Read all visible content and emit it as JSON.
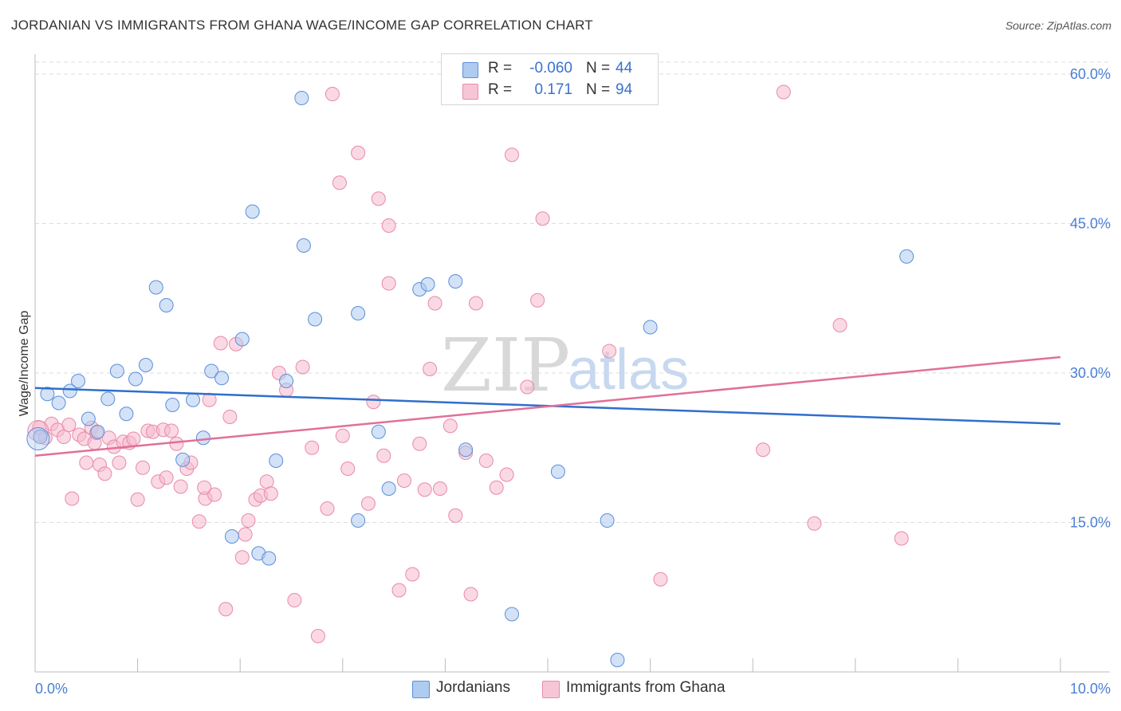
{
  "title": "JORDANIAN VS IMMIGRANTS FROM GHANA WAGE/INCOME GAP CORRELATION CHART",
  "source": "Source: ZipAtlas.com",
  "watermark": {
    "zip": "ZIP",
    "atlas": "atlas"
  },
  "legend": {
    "rows": [
      {
        "r_label": "R =",
        "r_value": "-0.060",
        "n_label": "N =",
        "n_value": "44"
      },
      {
        "r_label": "R =",
        "r_value": "0.171",
        "n_label": "N =",
        "n_value": "94"
      }
    ]
  },
  "bottom_legend": [
    "Jordanians",
    "Immigrants from Ghana"
  ],
  "colors": {
    "blue_fill": "#aecbf0",
    "blue_stroke": "#5b8fd9",
    "blue_line": "#2f6fcc",
    "pink_fill": "#f6b9cd",
    "pink_stroke": "#e88aa8",
    "pink_line": "#e0709a",
    "tick_label": "#4a7fd4",
    "grid": "#dddddd"
  },
  "chart_data": {
    "type": "scatter",
    "title": "JORDANIAN VS IMMIGRANTS FROM GHANA WAGE/INCOME GAP CORRELATION CHART",
    "xlabel": "",
    "ylabel": "Wage/Income Gap",
    "xlim": [
      0,
      10
    ],
    "ylim": [
      0,
      62
    ],
    "x_tick_labels": [
      {
        "value": 0,
        "label": "0.0%"
      },
      {
        "value": 10,
        "label": "10.0%"
      }
    ],
    "y_tick_labels": [
      {
        "value": 15,
        "label": "15.0%"
      },
      {
        "value": 30,
        "label": "30.0%"
      },
      {
        "value": 45,
        "label": "45.0%"
      },
      {
        "value": 60,
        "label": "60.0%"
      }
    ],
    "grid": true,
    "series": [
      {
        "name": "Jordanians",
        "color": "blue",
        "trend": {
          "x": [
            0,
            10
          ],
          "y": [
            28.5,
            24.9
          ]
        },
        "points": [
          [
            0.05,
            23.6
          ],
          [
            0.12,
            27.9
          ],
          [
            0.23,
            27.0
          ],
          [
            0.34,
            28.2
          ],
          [
            0.42,
            29.2
          ],
          [
            0.52,
            25.4
          ],
          [
            0.61,
            24.1
          ],
          [
            0.71,
            27.4
          ],
          [
            0.8,
            30.2
          ],
          [
            0.89,
            25.9
          ],
          [
            0.98,
            29.4
          ],
          [
            1.08,
            30.8
          ],
          [
            1.18,
            38.6
          ],
          [
            1.28,
            36.8
          ],
          [
            1.34,
            26.8
          ],
          [
            1.44,
            21.3
          ],
          [
            1.54,
            27.3
          ],
          [
            1.64,
            23.5
          ],
          [
            1.72,
            30.2
          ],
          [
            1.82,
            29.5
          ],
          [
            1.92,
            13.6
          ],
          [
            2.02,
            33.4
          ],
          [
            2.12,
            46.2
          ],
          [
            2.18,
            11.9
          ],
          [
            2.28,
            11.4
          ],
          [
            2.35,
            21.2
          ],
          [
            2.45,
            29.2
          ],
          [
            2.6,
            57.6
          ],
          [
            2.62,
            42.8
          ],
          [
            2.73,
            35.4
          ],
          [
            3.15,
            36.0
          ],
          [
            3.15,
            15.2
          ],
          [
            3.35,
            24.1
          ],
          [
            3.45,
            18.4
          ],
          [
            3.75,
            38.4
          ],
          [
            3.83,
            38.9
          ],
          [
            4.1,
            39.2
          ],
          [
            4.2,
            22.3
          ],
          [
            4.65,
            5.8
          ],
          [
            5.1,
            20.1
          ],
          [
            5.58,
            15.2
          ],
          [
            5.68,
            1.2
          ],
          [
            6.0,
            34.6
          ],
          [
            8.5,
            41.7
          ]
        ]
      },
      {
        "name": "Immigrants from Ghana",
        "color": "pink",
        "trend": {
          "x": [
            0,
            10
          ],
          "y": [
            21.7,
            31.6
          ]
        },
        "points": [
          [
            0.04,
            24.5
          ],
          [
            0.1,
            23.5
          ],
          [
            0.16,
            24.9
          ],
          [
            0.22,
            24.3
          ],
          [
            0.28,
            23.6
          ],
          [
            0.33,
            24.8
          ],
          [
            0.36,
            17.4
          ],
          [
            0.43,
            23.8
          ],
          [
            0.48,
            23.4
          ],
          [
            0.5,
            21.0
          ],
          [
            0.55,
            24.5
          ],
          [
            0.58,
            23.0
          ],
          [
            0.63,
            20.8
          ],
          [
            0.68,
            19.9
          ],
          [
            0.72,
            23.5
          ],
          [
            0.77,
            22.6
          ],
          [
            0.82,
            21.0
          ],
          [
            0.86,
            23.1
          ],
          [
            0.92,
            23.0
          ],
          [
            0.96,
            23.4
          ],
          [
            1.0,
            17.3
          ],
          [
            1.05,
            20.5
          ],
          [
            1.1,
            24.2
          ],
          [
            1.15,
            24.1
          ],
          [
            1.2,
            19.1
          ],
          [
            1.25,
            24.3
          ],
          [
            1.28,
            19.5
          ],
          [
            1.33,
            24.2
          ],
          [
            1.38,
            22.9
          ],
          [
            1.42,
            18.6
          ],
          [
            1.48,
            20.4
          ],
          [
            1.52,
            21.0
          ],
          [
            1.6,
            15.1
          ],
          [
            1.66,
            17.4
          ],
          [
            1.7,
            27.3
          ],
          [
            1.75,
            17.8
          ],
          [
            1.81,
            33.0
          ],
          [
            1.86,
            6.3
          ],
          [
            1.9,
            25.6
          ],
          [
            1.96,
            32.9
          ],
          [
            2.02,
            11.5
          ],
          [
            2.08,
            15.2
          ],
          [
            2.15,
            17.3
          ],
          [
            2.2,
            17.7
          ],
          [
            2.26,
            19.1
          ],
          [
            2.3,
            17.9
          ],
          [
            2.38,
            30.0
          ],
          [
            2.45,
            28.3
          ],
          [
            2.53,
            7.2
          ],
          [
            2.61,
            30.6
          ],
          [
            2.7,
            22.5
          ],
          [
            2.76,
            3.6
          ],
          [
            2.85,
            16.4
          ],
          [
            2.9,
            58.0
          ],
          [
            2.97,
            49.1
          ],
          [
            3.0,
            23.7
          ],
          [
            3.05,
            20.4
          ],
          [
            3.15,
            52.1
          ],
          [
            3.25,
            16.9
          ],
          [
            3.3,
            27.1
          ],
          [
            3.35,
            47.5
          ],
          [
            3.4,
            21.7
          ],
          [
            3.45,
            39.0
          ],
          [
            3.55,
            8.2
          ],
          [
            3.6,
            19.2
          ],
          [
            3.68,
            9.8
          ],
          [
            3.75,
            22.9
          ],
          [
            3.8,
            18.3
          ],
          [
            3.85,
            30.4
          ],
          [
            3.9,
            37.0
          ],
          [
            3.95,
            18.4
          ],
          [
            4.05,
            24.7
          ],
          [
            4.1,
            15.7
          ],
          [
            4.2,
            22.0
          ],
          [
            4.25,
            7.8
          ],
          [
            4.3,
            37.0
          ],
          [
            4.4,
            21.2
          ],
          [
            4.5,
            18.5
          ],
          [
            4.6,
            19.8
          ],
          [
            4.65,
            51.9
          ],
          [
            4.8,
            28.6
          ],
          [
            4.9,
            37.3
          ],
          [
            4.95,
            45.5
          ],
          [
            5.6,
            32.2
          ],
          [
            6.1,
            9.3
          ],
          [
            7.1,
            22.3
          ],
          [
            7.3,
            58.2
          ],
          [
            7.6,
            14.9
          ],
          [
            7.85,
            34.8
          ],
          [
            8.45,
            13.4
          ],
          [
            3.45,
            44.8
          ],
          [
            1.65,
            18.5
          ],
          [
            0.6,
            24.0
          ],
          [
            2.05,
            13.8
          ]
        ]
      }
    ]
  }
}
